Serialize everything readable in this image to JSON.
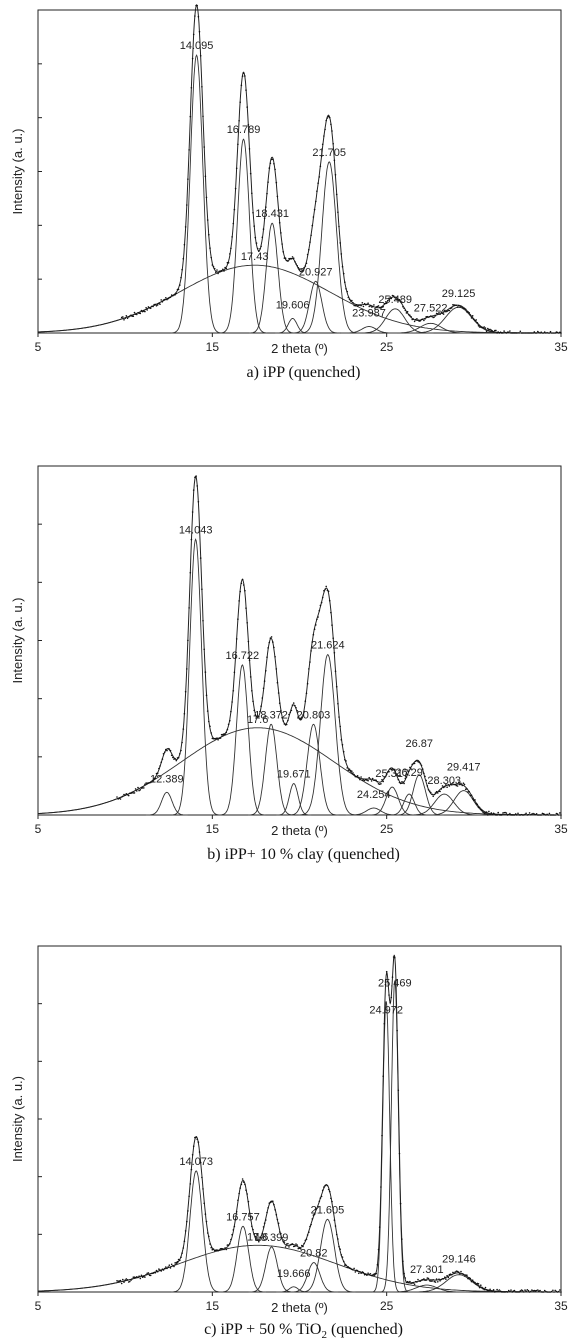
{
  "chart_data": [
    {
      "type": "line",
      "caption": "a) iPP (quenched)",
      "xlabel": "2 theta (º)",
      "ylabel": "Intensity (a. u.)",
      "xlim": [
        5,
        35
      ],
      "ylim": [
        0,
        1.0
      ],
      "x_ticks": [
        "5",
        "15",
        "25",
        "35"
      ],
      "baseline": {
        "from": 5.0,
        "onset": 9.8
      },
      "amorphous_halo": {
        "center": 17.43,
        "height": 0.21,
        "width": 4.3,
        "label": "17.43"
      },
      "peaks": [
        {
          "label": "14.095",
          "center": 14.095,
          "height": 0.86,
          "width": 0.36
        },
        {
          "label": "16.789",
          "center": 16.789,
          "height": 0.6,
          "width": 0.34
        },
        {
          "label": "18.431",
          "center": 18.431,
          "height": 0.34,
          "width": 0.33
        },
        {
          "label": "19.606",
          "center": 19.606,
          "height": 0.045,
          "width": 0.25
        },
        {
          "label": "20.927",
          "center": 20.927,
          "height": 0.16,
          "width": 0.35
        },
        {
          "label": "21.705",
          "center": 21.705,
          "height": 0.53,
          "width": 0.42
        },
        {
          "label": "23.987",
          "center": 23.987,
          "height": 0.02,
          "width": 0.4
        },
        {
          "label": "25.489",
          "center": 25.489,
          "height": 0.075,
          "width": 0.55
        },
        {
          "label": "27.522",
          "center": 27.522,
          "height": 0.03,
          "width": 0.6
        },
        {
          "label": "29.125",
          "center": 29.125,
          "height": 0.08,
          "width": 0.75
        }
      ]
    },
    {
      "type": "line",
      "caption": "b) iPP+ 10 % clay (quenched)",
      "xlabel": "2 theta (º)",
      "ylabel": "Intensity (a. u.)",
      "xlim": [
        5,
        35
      ],
      "ylim": [
        0,
        1.0
      ],
      "x_ticks": [
        "5",
        "15",
        "25",
        "35"
      ],
      "baseline": {
        "from": 5.0,
        "onset": 9.5
      },
      "amorphous_halo": {
        "center": 17.6,
        "height": 0.25,
        "width": 4.4,
        "label": "17.6"
      },
      "peaks": [
        {
          "label": "12.389",
          "center": 12.389,
          "height": 0.065,
          "width": 0.3
        },
        {
          "label": "14.043",
          "center": 14.043,
          "height": 0.79,
          "width": 0.34
        },
        {
          "label": "16.722",
          "center": 16.722,
          "height": 0.43,
          "width": 0.33
        },
        {
          "label": "18.372",
          "center": 18.372,
          "height": 0.26,
          "width": 0.33
        },
        {
          "label": "19.671",
          "center": 19.671,
          "height": 0.09,
          "width": 0.25
        },
        {
          "label": "20.803",
          "center": 20.803,
          "height": 0.26,
          "width": 0.36
        },
        {
          "label": "21.624",
          "center": 21.624,
          "height": 0.46,
          "width": 0.42
        },
        {
          "label": "24.254",
          "center": 24.254,
          "height": 0.02,
          "width": 0.4
        },
        {
          "label": "25.317",
          "center": 25.317,
          "height": 0.08,
          "width": 0.35
        },
        {
          "label": "26.29",
          "center": 26.29,
          "height": 0.06,
          "width": 0.3
        },
        {
          "label": "26.87",
          "center": 26.87,
          "height": 0.115,
          "width": 0.35
        },
        {
          "label": "28.303",
          "center": 28.303,
          "height": 0.06,
          "width": 0.55
        },
        {
          "label": "29.417",
          "center": 29.417,
          "height": 0.07,
          "width": 0.55
        }
      ]
    },
    {
      "type": "line",
      "caption": "c) iPP + 50 % TiO",
      "caption_sub": "2",
      "caption_tail": " (quenched)",
      "xlabel": "2 theta (º)",
      "ylabel": "Intensity (a. u.)",
      "xlim": [
        5,
        35
      ],
      "ylim": [
        0,
        1.0
      ],
      "x_ticks": [
        "5",
        "15",
        "25",
        "35"
      ],
      "baseline": {
        "from": 5.0,
        "onset": 9.5
      },
      "amorphous_halo": {
        "center": 17.6,
        "height": 0.135,
        "width": 4.5,
        "label": "17.6"
      },
      "peaks": [
        {
          "label": "14.073",
          "center": 14.073,
          "height": 0.35,
          "width": 0.36
        },
        {
          "label": "16.757",
          "center": 16.757,
          "height": 0.19,
          "width": 0.33
        },
        {
          "label": "18.399",
          "center": 18.399,
          "height": 0.13,
          "width": 0.33
        },
        {
          "label": "19.666",
          "center": 19.666,
          "height": 0.015,
          "width": 0.25
        },
        {
          "label": "20.82",
          "center": 20.82,
          "height": 0.085,
          "width": 0.35
        },
        {
          "label": "21.605",
          "center": 21.605,
          "height": 0.21,
          "width": 0.4
        },
        {
          "label": "24.972",
          "center": 24.972,
          "height": 0.84,
          "width": 0.2
        },
        {
          "label": "25.469",
          "center": 25.469,
          "height": 0.9,
          "width": 0.2
        },
        {
          "label": "27.301",
          "center": 27.301,
          "height": 0.02,
          "width": 0.6
        },
        {
          "label": "29.146",
          "center": 29.146,
          "height": 0.05,
          "width": 0.75
        }
      ]
    }
  ]
}
